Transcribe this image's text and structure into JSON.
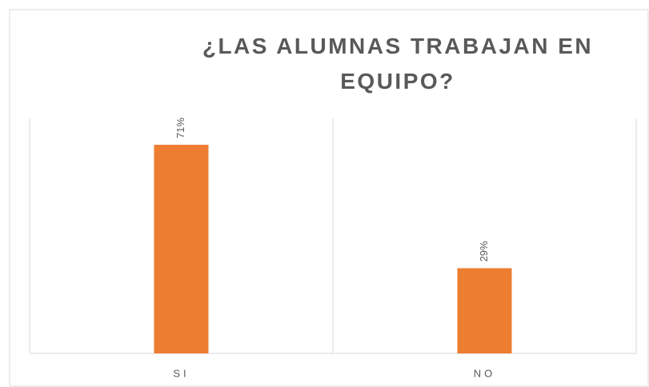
{
  "chart_data": {
    "type": "bar",
    "title": "¿LAS ALUMNAS TRABAJAN EN EQUIPO?",
    "categories": [
      "SI",
      "NO"
    ],
    "values": [
      71,
      29
    ],
    "value_labels": [
      "71%",
      "29%"
    ],
    "color": "#ed7d31",
    "ylim": [
      0,
      80
    ]
  }
}
